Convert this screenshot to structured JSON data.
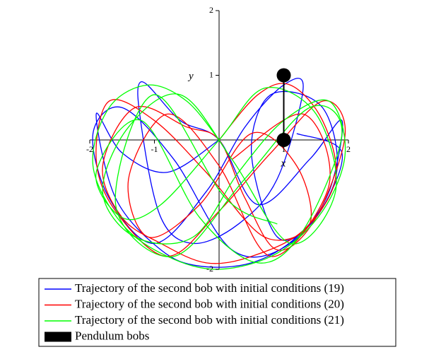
{
  "chart_data": {
    "type": "line",
    "x_label": "x",
    "y_label": "y",
    "xlim": [
      -2,
      2
    ],
    "ylim": [
      -2,
      2
    ],
    "xticks": [
      -2,
      -1,
      1,
      2
    ],
    "yticks": [
      -2,
      1,
      2
    ],
    "series": [
      {
        "name": "Trajectory of the second bob with initial conditions (19)",
        "color": "#0000ff",
        "x": [
          0,
          -0.8,
          -1.5,
          -1.9,
          -1.6,
          -0.9,
          -0.3,
          0.5,
          1.2,
          1.7,
          1.9,
          1.4,
          0.6,
          0,
          -0.6,
          -1.2,
          -1.2,
          -0.9,
          -0.4,
          0.3,
          0.9,
          1.3,
          1.0,
          0.4,
          -0.2,
          -1.0,
          -1.7,
          -1.95,
          -1.5,
          -0.7,
          0.2,
          1.1,
          1.8,
          1.6,
          0.8,
          0.5,
          0.9,
          1.5,
          1.9,
          1.2
        ],
        "values": [
          0,
          -0.5,
          -0.2,
          0.4,
          -0.9,
          -1.7,
          -1.95,
          -1.9,
          -1.5,
          -0.8,
          0.3,
          -0.3,
          -1.0,
          0,
          0.3,
          0.9,
          0.2,
          -1.2,
          -1.6,
          -1.3,
          -0.6,
          0.8,
          0.85,
          0.2,
          -0.8,
          -1.6,
          -0.9,
          0.1,
          0.5,
          -0.3,
          -1.7,
          -1.6,
          -0.6,
          0.5,
          0.7,
          -0.2,
          -1.5,
          -1.2,
          -0.2,
          0.1
        ]
      },
      {
        "name": "Trajectory of the second bob with initial conditions (20)",
        "color": "#ff0000",
        "x": [
          0,
          0.6,
          1.1,
          1.6,
          1.8,
          1.3,
          0.5,
          -0.2,
          -0.9,
          -1.5,
          -1.8,
          -1.3,
          -0.5,
          0,
          0.4,
          0.9,
          1.5,
          1.95,
          1.6,
          0.8,
          0,
          -0.8,
          -1.6,
          -1.9,
          -1.7,
          -1.0,
          -0.2,
          0.7,
          1.4,
          1.2,
          0.5,
          -0.3,
          -1.1,
          -1.4,
          -0.8,
          0,
          0.8,
          1.7,
          1.3,
          0.2
        ],
        "values": [
          0,
          0.7,
          0.85,
          0.3,
          -0.6,
          -1.4,
          -1.8,
          -1.9,
          -1.6,
          -1.2,
          -0.4,
          0.5,
          0.2,
          0,
          -0.9,
          -1.7,
          -1.2,
          0.1,
          0.6,
          -0.2,
          -1.1,
          -1.8,
          -1.1,
          -0.3,
          0.6,
          0.3,
          -0.5,
          -1.5,
          -1.3,
          -0.4,
          0.1,
          -1.0,
          -1.5,
          -0.6,
          0.4,
          -0.4,
          -1.8,
          -0.7,
          0.4,
          -0.3
        ]
      },
      {
        "name": "Trajectory of the second bob with initial conditions (21)",
        "color": "#00ff00",
        "x": [
          0,
          -0.5,
          -1.1,
          -1.7,
          -1.95,
          -1.5,
          -0.8,
          0,
          0.9,
          1.6,
          1.95,
          1.7,
          1.0,
          0.3,
          -0.4,
          -1.3,
          -1.8,
          -1.4,
          -0.6,
          0.2,
          1.1,
          1.8,
          1.5,
          0.7,
          0,
          -0.9,
          -1.5,
          -1.9,
          -1.2,
          -0.3,
          0.6,
          1.3,
          1.9,
          1.4,
          0.4,
          -0.7,
          -1.6,
          -1.0,
          0.1,
          0.9
        ],
        "values": [
          0,
          0.6,
          0.85,
          0.5,
          -0.4,
          -1.3,
          -1.8,
          -2.0,
          -1.75,
          -1.1,
          -0.2,
          0.6,
          0.3,
          -0.5,
          -1.5,
          -1.5,
          -0.8,
          0.2,
          0.7,
          -0.3,
          -1.6,
          -0.8,
          0.4,
          0.8,
          0,
          -1.0,
          -1.2,
          -0.5,
          0.3,
          -1.2,
          -1.9,
          -1.4,
          0.1,
          0.5,
          -0.6,
          -1.8,
          -1.0,
          0.7,
          -0.9,
          -1.3
        ]
      },
      {
        "name": "Pendulum bobs",
        "color": "#000000",
        "marker": "circle",
        "x": [
          1,
          1
        ],
        "values": [
          1,
          0
        ]
      }
    ]
  }
}
